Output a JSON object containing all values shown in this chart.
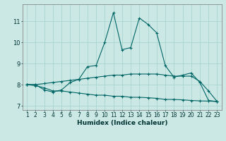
{
  "xlabel": "Humidex (Indice chaleur)",
  "bg_color": "#cce8e4",
  "grid_color": "#aad4d0",
  "line_color": "#006666",
  "xlim": [
    0.5,
    23.5
  ],
  "ylim": [
    6.8,
    11.8
  ],
  "xticks": [
    1,
    2,
    3,
    4,
    5,
    6,
    7,
    8,
    9,
    10,
    11,
    12,
    13,
    14,
    15,
    16,
    17,
    18,
    19,
    20,
    21,
    22,
    23
  ],
  "yticks": [
    7,
    8,
    9,
    10,
    11
  ],
  "line1_x": [
    1,
    2,
    3,
    4,
    5,
    6,
    7,
    8,
    9,
    10,
    11,
    12,
    13,
    14,
    15,
    16,
    17,
    18,
    19,
    20,
    21,
    22,
    23
  ],
  "line1_y": [
    8.0,
    8.0,
    7.75,
    7.65,
    7.75,
    8.1,
    8.25,
    8.85,
    8.9,
    10.0,
    11.4,
    9.65,
    9.75,
    11.15,
    10.85,
    10.45,
    8.9,
    8.35,
    8.45,
    8.55,
    8.1,
    7.25,
    7.2
  ],
  "line2_x": [
    1,
    2,
    3,
    4,
    5,
    6,
    7,
    8,
    9,
    10,
    11,
    12,
    13,
    14,
    15,
    16,
    17,
    18,
    19,
    20,
    21,
    22,
    23
  ],
  "line2_y": [
    8.0,
    8.0,
    8.05,
    8.1,
    8.15,
    8.2,
    8.25,
    8.3,
    8.35,
    8.4,
    8.45,
    8.45,
    8.5,
    8.5,
    8.5,
    8.5,
    8.45,
    8.4,
    8.4,
    8.4,
    8.15,
    7.7,
    7.2
  ],
  "line3_x": [
    1,
    2,
    3,
    4,
    5,
    6,
    7,
    8,
    9,
    10,
    11,
    12,
    13,
    14,
    15,
    16,
    17,
    18,
    19,
    20,
    21,
    22,
    23
  ],
  "line3_y": [
    8.0,
    7.95,
    7.85,
    7.7,
    7.7,
    7.65,
    7.6,
    7.55,
    7.5,
    7.5,
    7.45,
    7.45,
    7.4,
    7.4,
    7.38,
    7.35,
    7.3,
    7.3,
    7.28,
    7.25,
    7.23,
    7.22,
    7.2
  ],
  "tick_fontsize": 5.5,
  "xlabel_fontsize": 6.5
}
